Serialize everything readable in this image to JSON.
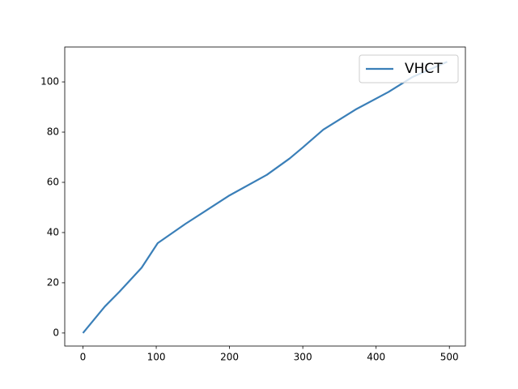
{
  "chart_data": {
    "type": "line",
    "x": [
      0,
      30,
      50,
      80,
      102,
      140,
      200,
      251,
      282,
      300,
      328,
      372,
      417,
      450,
      497
    ],
    "series": [
      {
        "name": "VHCT",
        "color": "#3a7fb8",
        "values": [
          0,
          10.6,
          16.5,
          26,
          35.8,
          43.5,
          54.8,
          63,
          69.5,
          73.9,
          81,
          89,
          96,
          102,
          108
        ]
      }
    ],
    "xlim": [
      -24.85,
      521.85
    ],
    "xticks": [
      0,
      100,
      200,
      300,
      400,
      500
    ],
    "ylim": [
      -5.2,
      113.9
    ],
    "yticks": [
      0,
      20,
      40,
      60,
      80,
      100
    ],
    "legend": "upper right"
  }
}
